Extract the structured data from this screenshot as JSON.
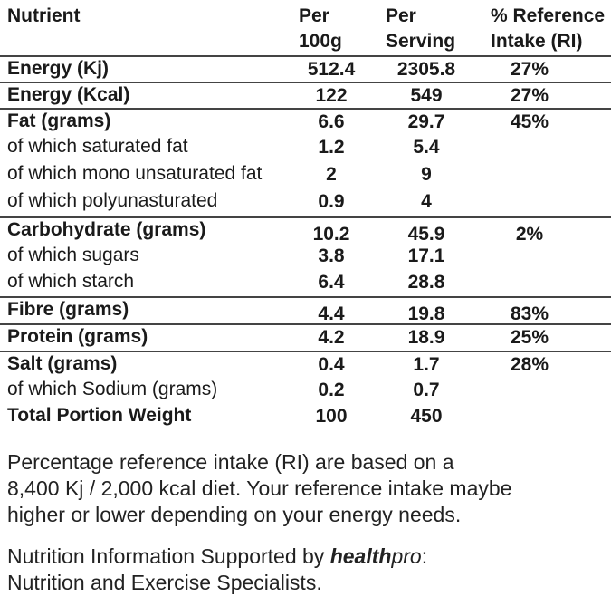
{
  "header": {
    "nutrient": "Nutrient",
    "per100_line1": "Per",
    "per100_line2": "100g",
    "perserving_line1": "Per",
    "perserving_line2": "Serving",
    "ri_line1": "% Reference",
    "ri_line2": "Intake (RI)"
  },
  "rows": [
    {
      "label": "Energy (Kj)",
      "per100": "512.4",
      "serving": "2305.8",
      "ri": "27%"
    },
    {
      "label": "Energy (Kcal)",
      "per100": "122",
      "serving": "549",
      "ri": "27%"
    },
    {
      "label": "Fat (grams)",
      "per100": "6.6",
      "serving": "29.7",
      "ri": "45%"
    },
    {
      "label": "of which saturated fat",
      "per100": "1.2",
      "serving": "5.4",
      "ri": ""
    },
    {
      "label": "of which mono unsaturated fat",
      "per100": "2",
      "serving": "9",
      "ri": ""
    },
    {
      "label": "of which polyunasturated",
      "per100": "0.9",
      "serving": "4",
      "ri": ""
    },
    {
      "label": "Carbohydrate (grams)",
      "per100": "10.2",
      "serving": "45.9",
      "ri": "2%"
    },
    {
      "label": "of which sugars",
      "per100": "3.8",
      "serving": "17.1",
      "ri": ""
    },
    {
      "label": "of which starch",
      "per100": "6.4",
      "serving": "28.8",
      "ri": ""
    },
    {
      "label": "Fibre (grams)",
      "per100": "4.4",
      "serving": "19.8",
      "ri": "83%"
    },
    {
      "label": "Protein (grams)",
      "per100": "4.2",
      "serving": "18.9",
      "ri": "25%"
    },
    {
      "label": "Salt (grams)",
      "per100": "0.4",
      "serving": "1.7",
      "ri": "28%"
    },
    {
      "label": "of which Sodium (grams)",
      "per100": "0.2",
      "serving": "0.7",
      "ri": ""
    },
    {
      "label": "Total Portion Weight",
      "per100": "100",
      "serving": "450",
      "ri": ""
    }
  ],
  "footnote": {
    "line1": "Percentage reference intake (RI) are based on a",
    "line2": "8,400 Kj / 2,000 kcal diet. Your reference intake maybe",
    "line3": "higher or lower depending on your energy needs."
  },
  "credit": {
    "prefix": "Nutrition Information Supported by ",
    "brand_bold": "health",
    "brand_italic": "pro",
    "suffix": ":",
    "line2": "Nutrition and Exercise Specialists."
  }
}
